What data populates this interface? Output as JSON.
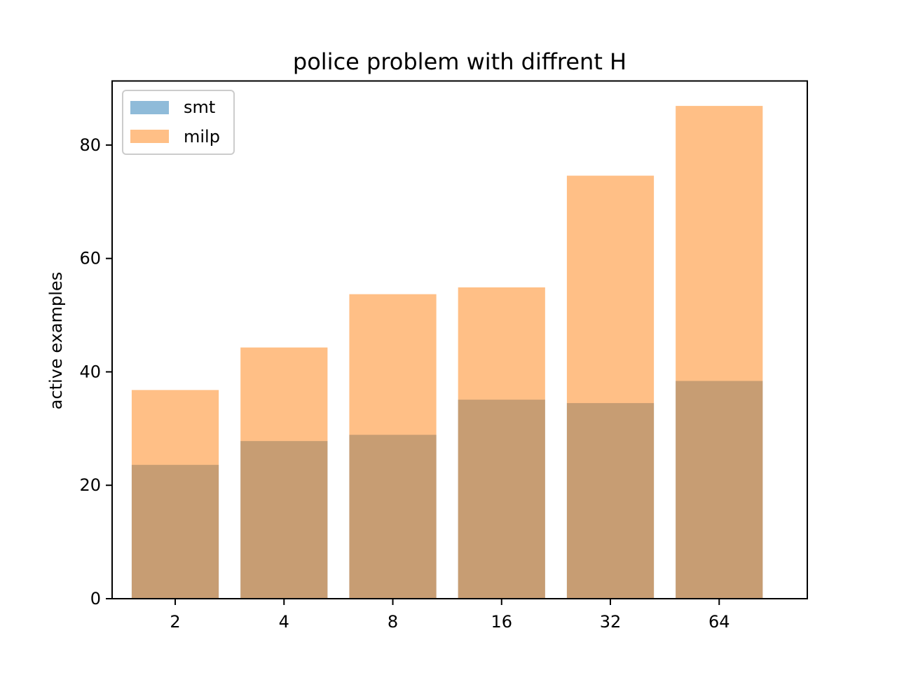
{
  "chart_data": {
    "type": "bar",
    "title": "police problem with diffrent H",
    "xlabel": "",
    "ylabel": "active examples",
    "categories": [
      "2",
      "4",
      "8",
      "16",
      "32",
      "64"
    ],
    "series": [
      {
        "name": "smt",
        "values": [
          23.6,
          27.8,
          28.9,
          35.1,
          34.5,
          38.4
        ],
        "color": "#1f77b4",
        "opacity": 0.5
      },
      {
        "name": "milp",
        "values": [
          36.8,
          44.3,
          53.7,
          54.9,
          74.6,
          86.9
        ],
        "color": "#ff7f0e",
        "opacity": 0.5
      }
    ],
    "ylim": [
      0,
      91.3
    ],
    "yticks": [
      0,
      20,
      40,
      60,
      80
    ],
    "grid": false,
    "legend_position": "upper-left"
  }
}
